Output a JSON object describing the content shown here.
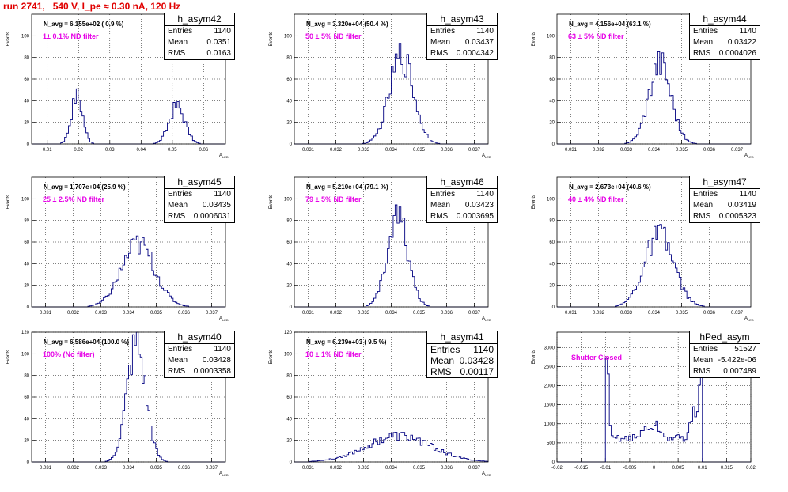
{
  "run_title": "run 2741,   540 V, I_pe ≈ 0.30 nA, 120 Hz",
  "chart_data": [
    {
      "type": "bar",
      "name": "h_asym42",
      "stats": {
        "entries": "1140",
        "mean": "0.0351",
        "rms": "0.0163"
      },
      "navg": "N_avg = 6.155e+02 ( 0.9 %)",
      "filter": "1± 0.1% ND filter",
      "xlabel": "A_LED",
      "ylabel": "Events",
      "xlim": [
        0.005,
        0.067
      ],
      "ylim": [
        0,
        120
      ],
      "xticks": [
        "0.01",
        "0.02",
        "0.03",
        "0.04",
        "0.05",
        "0.06"
      ],
      "yticks": [
        "0",
        "20",
        "40",
        "60",
        "80",
        "100"
      ],
      "peaks": [
        {
          "mu": 0.0195,
          "sigma": 0.0018,
          "amp": 45
        },
        {
          "mu": 0.0515,
          "sigma": 0.0025,
          "amp": 35
        }
      ]
    },
    {
      "type": "bar",
      "name": "h_asym43",
      "stats": {
        "entries": "1140",
        "mean": "0.03437",
        "rms": "0.0004342"
      },
      "navg": "N_avg = 3.320e+04 (50.4 %)",
      "filter": "50 ± 5% ND filter",
      "xlabel": "A_LED",
      "ylabel": "Events",
      "xlim": [
        0.0305,
        0.0375
      ],
      "ylim": [
        0,
        120
      ],
      "xticks": [
        "0.031",
        "0.032",
        "0.033",
        "0.034",
        "0.035",
        "0.036",
        "0.037"
      ],
      "yticks": [
        "0",
        "20",
        "40",
        "60",
        "80",
        "100"
      ],
      "peaks": [
        {
          "mu": 0.03437,
          "sigma": 0.00043,
          "amp": 82
        }
      ]
    },
    {
      "type": "bar",
      "name": "h_asym44",
      "stats": {
        "entries": "1140",
        "mean": "0.03422",
        "rms": "0.0004026"
      },
      "navg": "N_avg = 4.156e+04 (63.1 %)",
      "filter": "63 ± 5% ND filter",
      "xlabel": "A_LED",
      "ylabel": "Events",
      "xlim": [
        0.0305,
        0.0375
      ],
      "ylim": [
        0,
        120
      ],
      "xticks": [
        "0.031",
        "0.032",
        "0.033",
        "0.034",
        "0.035",
        "0.036",
        "0.037"
      ],
      "yticks": [
        "0",
        "20",
        "40",
        "60",
        "80",
        "100"
      ],
      "peaks": [
        {
          "mu": 0.03422,
          "sigma": 0.0004,
          "amp": 76
        }
      ]
    },
    {
      "type": "bar",
      "name": "h_asym45",
      "stats": {
        "entries": "1140",
        "mean": "0.03435",
        "rms": "0.0006031"
      },
      "navg": "N_avg = 1.707e+04 (25.9 %)",
      "filter": "25 ± 2.5% ND filter",
      "xlabel": "A_LED",
      "ylabel": "Events",
      "xlim": [
        0.0305,
        0.0375
      ],
      "ylim": [
        0,
        120
      ],
      "xticks": [
        "0.031",
        "0.032",
        "0.033",
        "0.034",
        "0.035",
        "0.036",
        "0.037"
      ],
      "yticks": [
        "0",
        "20",
        "40",
        "60",
        "80",
        "100"
      ],
      "peaks": [
        {
          "mu": 0.03435,
          "sigma": 0.0006,
          "amp": 58
        }
      ]
    },
    {
      "type": "bar",
      "name": "h_asym46",
      "stats": {
        "entries": "1140",
        "mean": "0.03423",
        "rms": "0.0003695"
      },
      "navg": "N_avg = 5.210e+04 (79.1 %)",
      "filter": "79 ± 5% ND filter",
      "xlabel": "A_LED",
      "ylabel": "Events",
      "xlim": [
        0.0305,
        0.0375
      ],
      "ylim": [
        0,
        120
      ],
      "xticks": [
        "0.031",
        "0.032",
        "0.033",
        "0.034",
        "0.035",
        "0.036",
        "0.037"
      ],
      "yticks": [
        "0",
        "20",
        "40",
        "60",
        "80",
        "100"
      ],
      "peaks": [
        {
          "mu": 0.03423,
          "sigma": 0.00037,
          "amp": 84
        }
      ]
    },
    {
      "type": "bar",
      "name": "h_asym47",
      "stats": {
        "entries": "1140",
        "mean": "0.03419",
        "rms": "0.0005323"
      },
      "navg": "N_avg = 2.673e+04 (40.6 %)",
      "filter": "40 ± 4% ND filter",
      "xlabel": "A_LED",
      "ylabel": "Events",
      "xlim": [
        0.0305,
        0.0375
      ],
      "ylim": [
        0,
        120
      ],
      "xticks": [
        "0.031",
        "0.032",
        "0.033",
        "0.034",
        "0.035",
        "0.036",
        "0.037"
      ],
      "yticks": [
        "0",
        "20",
        "40",
        "60",
        "80",
        "100"
      ],
      "peaks": [
        {
          "mu": 0.03419,
          "sigma": 0.00053,
          "amp": 66
        }
      ]
    },
    {
      "type": "bar",
      "name": "h_asym40",
      "stats": {
        "entries": "1140",
        "mean": "0.03428",
        "rms": "0.0003358"
      },
      "navg": "N_avg = 6.586e+04 (100.0 %)",
      "filter": "100% (No filter)",
      "xlabel": "A_LED",
      "ylabel": "Events",
      "xlim": [
        0.0305,
        0.0375
      ],
      "ylim": [
        0,
        120
      ],
      "xticks": [
        "0.031",
        "0.032",
        "0.033",
        "0.034",
        "0.035",
        "0.036",
        "0.037"
      ],
      "yticks": [
        "0",
        "20",
        "40",
        "60",
        "80",
        "100",
        "120"
      ],
      "peaks": [
        {
          "mu": 0.03428,
          "sigma": 0.00034,
          "amp": 108
        }
      ]
    },
    {
      "type": "bar",
      "name": "h_asym41",
      "stats": {
        "entries": "1140",
        "mean": "0.03428",
        "rms": "0.00117"
      },
      "navg": "N_avg = 6.239e+03 ( 9.5 %)",
      "filter": "10 ± 1% ND filter",
      "xlabel": "A_LED",
      "ylabel": "Events",
      "xlim": [
        0.0305,
        0.0375
      ],
      "ylim": [
        0,
        120
      ],
      "xticks": [
        "0.031",
        "0.032",
        "0.033",
        "0.034",
        "0.035",
        "0.036",
        "0.037"
      ],
      "yticks": [
        "0",
        "20",
        "40",
        "60",
        "80",
        "100",
        "120"
      ],
      "peaks": [
        {
          "mu": 0.03428,
          "sigma": 0.00117,
          "amp": 24
        }
      ]
    },
    {
      "type": "bar",
      "name": "hPed_asym",
      "stats": {
        "entries": "51527",
        "mean": "-5.422e-06",
        "rms": "0.007489"
      },
      "navg": "",
      "filter": "Shutter Closed",
      "xlabel": "",
      "ylabel": "Events",
      "xlim": [
        -0.02,
        0.02
      ],
      "ylim": [
        0,
        3400
      ],
      "xticks": [
        "-0.02",
        "-0.015",
        "-0.01",
        "-0.005",
        "0",
        "0.005",
        "0.01",
        "0.015",
        "0.02"
      ],
      "yticks": [
        "0",
        "500",
        "1000",
        "1500",
        "2000",
        "2500",
        "3000"
      ],
      "pedestal": true
    }
  ]
}
